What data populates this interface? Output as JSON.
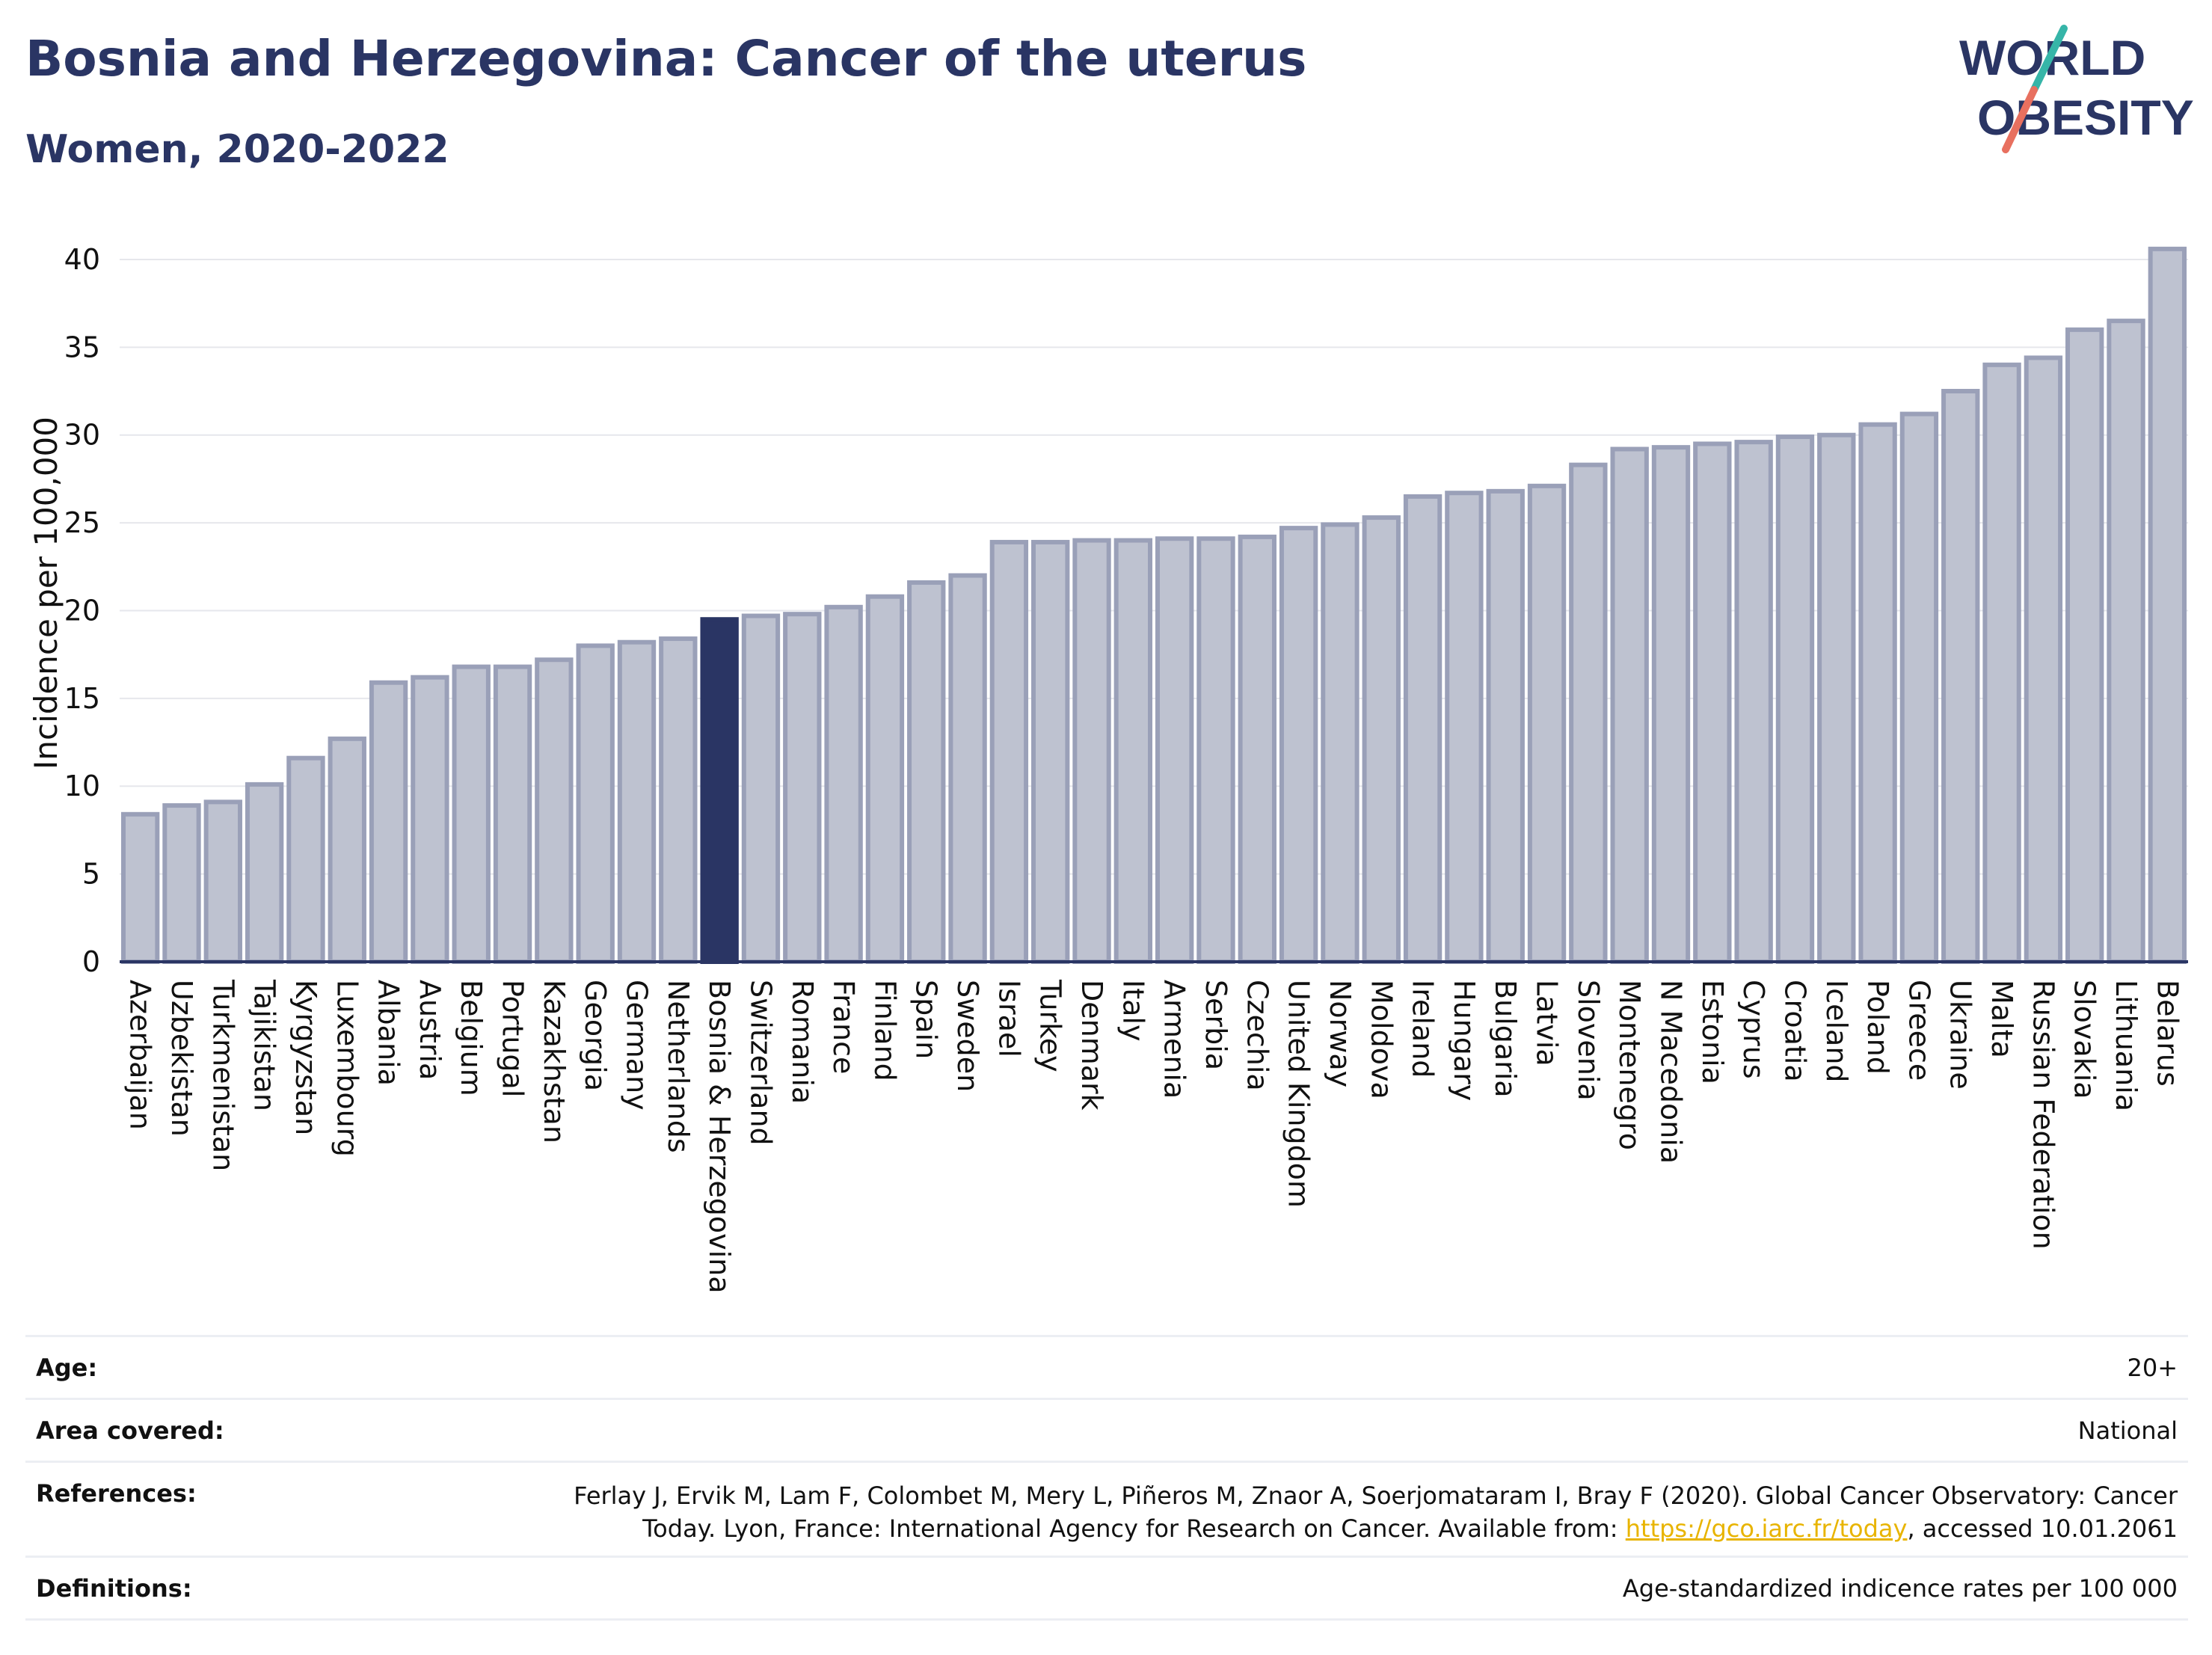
{
  "header": {
    "title": "Bosnia and Herzegovina: Cancer of the uterus",
    "subtitle": "Women, 2020-2022"
  },
  "logo": {
    "line1": "WORLD",
    "line2": "OBESITY"
  },
  "colors": {
    "bar": "#bec2d0",
    "bar_border": "#9aa0b8",
    "highlight": "#2a3564",
    "text": "#2a3564"
  },
  "chart_data": {
    "type": "bar",
    "ylabel": "Incidence per 100,000",
    "ylim": [
      0,
      42
    ],
    "yticks": [
      0,
      5,
      10,
      15,
      20,
      25,
      30,
      35,
      40
    ],
    "grid": true,
    "highlight": "Bosnia & Herzegovina",
    "categories": [
      "Azerbaijan",
      "Uzbekistan",
      "Turkmenistan",
      "Tajikistan",
      "Kyrgyzstan",
      "Luxembourg",
      "Albania",
      "Austria",
      "Belgium",
      "Portugal",
      "Kazakhstan",
      "Georgia",
      "Germany",
      "Netherlands",
      "Bosnia & Herzegovina",
      "Switzerland",
      "Romania",
      "France",
      "Finland",
      "Spain",
      "Sweden",
      "Israel",
      "Turkey",
      "Denmark",
      "Italy",
      "Armenia",
      "Serbia",
      "Czechia",
      "United Kingdom",
      "Norway",
      "Moldova",
      "Ireland",
      "Hungary",
      "Bulgaria",
      "Latvia",
      "Slovenia",
      "Montenegro",
      "N Macedonia",
      "Estonia",
      "Cyprus",
      "Croatia",
      "Iceland",
      "Poland",
      "Greece",
      "Ukraine",
      "Malta",
      "Russian Federation",
      "Slovakia",
      "Lithuania",
      "Belarus"
    ],
    "values": [
      8.4,
      8.9,
      9.1,
      10.1,
      11.6,
      12.7,
      15.9,
      16.2,
      16.8,
      16.8,
      17.2,
      18.0,
      18.2,
      18.4,
      19.5,
      19.7,
      19.8,
      20.2,
      20.8,
      21.6,
      22.0,
      23.9,
      23.9,
      24.0,
      24.0,
      24.1,
      24.1,
      24.2,
      24.7,
      24.9,
      25.3,
      26.5,
      26.7,
      26.8,
      27.1,
      28.3,
      29.2,
      29.3,
      29.5,
      29.6,
      29.9,
      30.0,
      30.6,
      31.2,
      32.5,
      34.0,
      34.4,
      36.0,
      36.5,
      40.6
    ]
  },
  "meta": {
    "age_label": "Age:",
    "age_value": "20+",
    "area_label": "Area covered:",
    "area_value": "National",
    "references_label": "References:",
    "references_line1": "Ferlay J, Ervik M, Lam F, Colombet M, Mery L, Piñeros M, Znaor A, Soerjomataram I, Bray F (2020). Global Cancer Observatory: Cancer",
    "references_line2_pre": "Today. Lyon, France: International Agency for Research on Cancer. Available from: ",
    "references_link": "https://gco.iarc.fr/today",
    "references_line2_post": ", accessed 10.01.2061",
    "definitions_label": "Definitions:",
    "definitions_value": "Age-standardized indicence rates per 100 000"
  }
}
